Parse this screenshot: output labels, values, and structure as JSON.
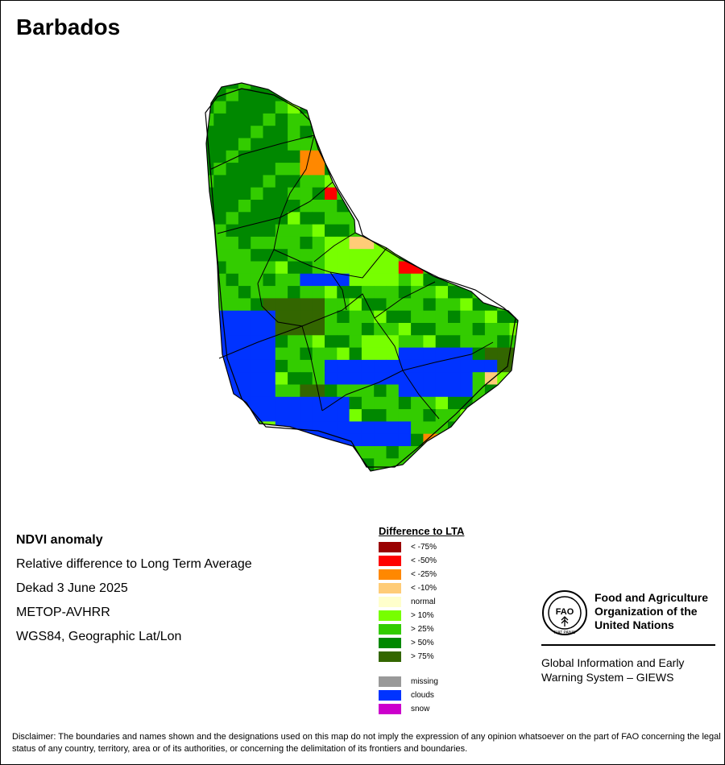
{
  "title": "Barbados",
  "info": {
    "line1": "NDVI anomaly",
    "line2": "Relative difference to Long Term Average",
    "line3": "Dekad 3 June 2025",
    "line4": "METOP-AVHRR",
    "line5": "WGS84, Geographic Lat/Lon"
  },
  "legend": {
    "title": "Difference to LTA",
    "items": [
      {
        "label": "< -75%",
        "color": "#990000"
      },
      {
        "label": "< -50%",
        "color": "#ff0000"
      },
      {
        "label": "< -25%",
        "color": "#ff8800"
      },
      {
        "label": "< -10%",
        "color": "#ffcc77"
      },
      {
        "label": "normal",
        "color": "#ffffcc"
      },
      {
        "label": "> 10%",
        "color": "#77ff00"
      },
      {
        "label": "> 25%",
        "color": "#33cc00"
      },
      {
        "label": "> 50%",
        "color": "#008800"
      },
      {
        "label": "> 75%",
        "color": "#336600"
      }
    ],
    "extra": [
      {
        "label": "missing",
        "color": "#999999"
      },
      {
        "label": "clouds",
        "color": "#0033ff"
      },
      {
        "label": "snow",
        "color": "#cc00cc"
      }
    ]
  },
  "org": {
    "name_line1": "Food and Agriculture",
    "name_line2": "Organization of the",
    "name_line3": "United Nations",
    "logo_text": "FAO",
    "logo_motto": "FIAT PANIS",
    "giews_line1": "Global Information and Early",
    "giews_line2": "Warning System – GIEWS"
  },
  "disclaimer": "Disclaimer: The boundaries and names shown and the designations used on this map do not imply the expression of any opinion whatsoever on the part of FAO concerning the legal status of any country, territory, area or of its authorities, or concerning the delimitation of its frontiers and boundaries."
}
